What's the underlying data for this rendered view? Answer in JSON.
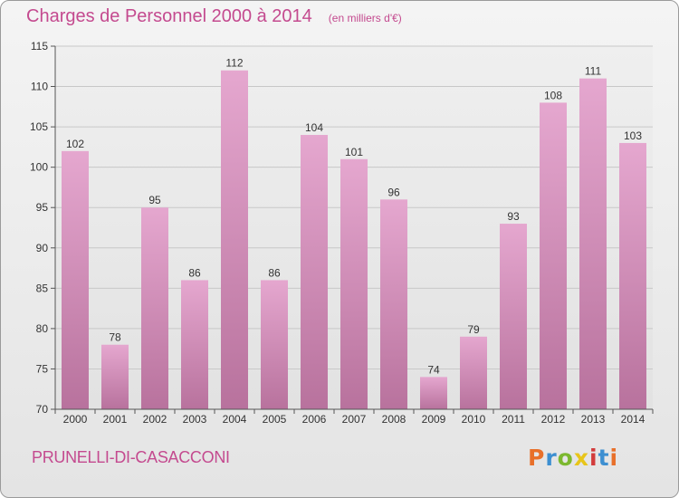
{
  "header": {
    "title": "Charges de Personnel 2000 à 2014",
    "subtitle": "(en milliers d'€)"
  },
  "footer": {
    "commune": "PRUNELLI-DI-CASACCONI",
    "logo_text": "Proxiti",
    "logo_colors": [
      "#e8702a",
      "#3d8fd1",
      "#7cb82f",
      "#e8c51a",
      "#d23c3c",
      "#3d8fd1",
      "#e8702a"
    ]
  },
  "colors": {
    "bar_top": "#e5a7cf",
    "bar_bottom": "#b8729d",
    "accent": "#c44a8f",
    "grid": "#c8c8c8"
  },
  "chart_data": {
    "type": "bar",
    "title": "Charges de Personnel 2000 à 2014",
    "subtitle": "(en milliers d'€)",
    "xlabel": "",
    "ylabel": "",
    "categories": [
      "2000",
      "2001",
      "2002",
      "2003",
      "2004",
      "2005",
      "2006",
      "2007",
      "2008",
      "2009",
      "2010",
      "2011",
      "2012",
      "2013",
      "2014"
    ],
    "values": [
      102,
      78,
      95,
      86,
      112,
      86,
      104,
      101,
      96,
      74,
      79,
      93,
      108,
      111,
      103
    ],
    "ylim": [
      70,
      115
    ],
    "yticks": [
      70,
      75,
      80,
      85,
      90,
      95,
      100,
      105,
      110,
      115
    ],
    "grid": true,
    "legend": "none"
  }
}
